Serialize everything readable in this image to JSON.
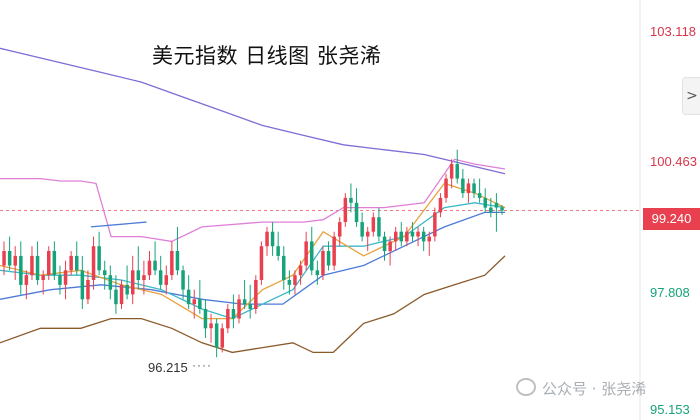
{
  "chart_data": {
    "type": "candlestick",
    "title": "美元指数 日线图 张尧浠",
    "y_axis": {
      "tick_labels": [
        "103.118",
        "100.463",
        "99.240",
        "97.808",
        "95.153"
      ],
      "ylim": [
        94.9,
        103.6
      ]
    },
    "last_price": "99.240",
    "low_annotation": "96.215",
    "candles": [
      [
        98.1,
        98.6,
        97.9,
        98.4
      ],
      [
        98.4,
        98.7,
        98.0,
        98.1
      ],
      [
        98.1,
        98.5,
        97.8,
        98.3
      ],
      [
        98.3,
        98.6,
        97.5,
        97.7
      ],
      [
        97.7,
        98.0,
        97.4,
        97.9
      ],
      [
        97.9,
        98.5,
        97.8,
        98.3
      ],
      [
        98.3,
        98.6,
        97.7,
        97.8
      ],
      [
        97.8,
        98.0,
        97.5,
        97.9
      ],
      [
        97.9,
        98.5,
        97.8,
        98.4
      ],
      [
        98.4,
        98.6,
        97.8,
        97.9
      ],
      [
        97.9,
        98.1,
        97.5,
        97.7
      ],
      [
        97.7,
        98.2,
        97.4,
        98.0
      ],
      [
        98.0,
        98.4,
        97.9,
        98.3
      ],
      [
        98.3,
        98.6,
        97.9,
        98.0
      ],
      [
        98.0,
        98.3,
        97.2,
        97.4
      ],
      [
        97.4,
        98.0,
        97.3,
        97.8
      ],
      [
        97.8,
        98.7,
        97.6,
        98.5
      ],
      [
        98.5,
        98.8,
        97.9,
        98.0
      ],
      [
        98.0,
        98.2,
        97.6,
        97.9
      ],
      [
        97.9,
        98.1,
        97.4,
        97.6
      ],
      [
        97.6,
        97.9,
        97.1,
        97.3
      ],
      [
        97.3,
        97.8,
        97.2,
        97.7
      ],
      [
        97.7,
        98.1,
        97.4,
        97.5
      ],
      [
        97.5,
        98.3,
        97.3,
        98.0
      ],
      [
        98.0,
        98.5,
        97.6,
        97.8
      ],
      [
        97.8,
        98.2,
        97.5,
        97.9
      ],
      [
        97.9,
        98.4,
        97.8,
        98.2
      ],
      [
        98.2,
        98.6,
        97.9,
        98.0
      ],
      [
        98.0,
        98.3,
        97.6,
        97.7
      ],
      [
        97.7,
        98.1,
        97.5,
        97.9
      ],
      [
        97.9,
        98.6,
        97.8,
        98.4
      ],
      [
        98.4,
        98.9,
        97.9,
        98.0
      ],
      [
        98.0,
        98.1,
        97.4,
        97.6
      ],
      [
        97.6,
        97.9,
        97.2,
        97.3
      ],
      [
        97.3,
        97.6,
        97.0,
        97.4
      ],
      [
        97.4,
        97.8,
        97.1,
        97.2
      ],
      [
        97.2,
        97.4,
        96.6,
        96.8
      ],
      [
        96.8,
        97.1,
        96.5,
        96.9
      ],
      [
        96.9,
        97.0,
        96.2,
        96.4
      ],
      [
        96.4,
        96.9,
        96.3,
        96.8
      ],
      [
        96.8,
        97.3,
        96.7,
        97.2
      ],
      [
        97.2,
        97.5,
        96.8,
        97.0
      ],
      [
        97.0,
        97.5,
        96.9,
        97.4
      ],
      [
        97.4,
        97.8,
        97.2,
        97.3
      ],
      [
        97.3,
        97.7,
        97.0,
        97.2
      ],
      [
        97.2,
        97.9,
        97.1,
        97.8
      ],
      [
        97.8,
        98.6,
        97.7,
        98.5
      ],
      [
        98.5,
        98.9,
        98.3,
        98.8
      ],
      [
        98.8,
        99.0,
        98.3,
        98.5
      ],
      [
        98.5,
        98.8,
        98.2,
        98.3
      ],
      [
        98.3,
        98.5,
        97.6,
        97.8
      ],
      [
        97.8,
        98.0,
        97.5,
        97.7
      ],
      [
        97.7,
        98.0,
        97.5,
        97.9
      ],
      [
        97.9,
        98.2,
        97.7,
        98.1
      ],
      [
        98.1,
        98.8,
        98.0,
        98.6
      ],
      [
        98.6,
        98.9,
        97.9,
        98.0
      ],
      [
        98.0,
        98.2,
        97.7,
        97.9
      ],
      [
        97.9,
        98.5,
        97.8,
        98.4
      ],
      [
        98.4,
        98.6,
        98.0,
        98.1
      ],
      [
        98.1,
        98.8,
        98.0,
        98.7
      ],
      [
        98.7,
        99.1,
        98.5,
        99.0
      ],
      [
        99.0,
        99.6,
        98.9,
        99.5
      ],
      [
        99.5,
        99.8,
        99.2,
        99.4
      ],
      [
        99.4,
        99.7,
        98.9,
        99.0
      ],
      [
        99.0,
        99.2,
        98.6,
        98.7
      ],
      [
        98.7,
        98.9,
        98.4,
        98.8
      ],
      [
        98.8,
        99.2,
        98.7,
        99.1
      ],
      [
        99.1,
        99.3,
        98.6,
        98.7
      ],
      [
        98.7,
        98.8,
        98.2,
        98.4
      ],
      [
        98.4,
        98.7,
        98.1,
        98.6
      ],
      [
        98.6,
        98.9,
        98.4,
        98.8
      ],
      [
        98.8,
        99.0,
        98.5,
        98.6
      ],
      [
        98.6,
        98.9,
        98.5,
        98.8
      ],
      [
        98.8,
        99.0,
        98.6,
        98.7
      ],
      [
        98.7,
        98.9,
        98.5,
        98.8
      ],
      [
        98.8,
        98.9,
        98.4,
        98.6
      ],
      [
        98.6,
        98.8,
        98.3,
        98.7
      ],
      [
        98.7,
        99.3,
        98.6,
        99.2
      ],
      [
        99.2,
        99.6,
        99.1,
        99.5
      ],
      [
        99.5,
        100.0,
        99.4,
        99.9
      ],
      [
        99.9,
        100.3,
        99.7,
        100.2
      ],
      [
        100.2,
        100.5,
        99.8,
        99.9
      ],
      [
        99.9,
        100.1,
        99.5,
        99.6
      ],
      [
        99.6,
        99.9,
        99.4,
        99.8
      ],
      [
        99.8,
        99.9,
        99.5,
        99.6
      ],
      [
        99.6,
        99.9,
        99.4,
        99.5
      ],
      [
        99.5,
        99.7,
        99.2,
        99.3
      ],
      [
        99.3,
        99.5,
        99.1,
        99.2
      ],
      [
        99.4,
        99.6,
        98.8,
        99.3
      ],
      [
        99.3,
        99.35,
        99.15,
        99.24
      ]
    ],
    "series": [
      {
        "type": "line",
        "color": "#7f6cd6",
        "values": [
          [
            0,
            102.6
          ],
          [
            20,
            102.5
          ],
          [
            60,
            102.3
          ],
          [
            100,
            102.1
          ],
          [
            140,
            101.9
          ],
          [
            180,
            101.6
          ],
          [
            220,
            101.3
          ],
          [
            260,
            101.0
          ],
          [
            300,
            100.8
          ],
          [
            340,
            100.6
          ],
          [
            380,
            100.5
          ],
          [
            420,
            100.4
          ],
          [
            460,
            100.2
          ],
          [
            500,
            100.0
          ]
        ]
      },
      {
        "type": "line",
        "color": "#e07fd8",
        "values": [
          [
            0,
            99.9
          ],
          [
            40,
            99.9
          ],
          [
            60,
            99.85
          ],
          [
            80,
            99.85
          ],
          [
            95,
            99.8
          ],
          [
            110,
            98.7
          ],
          [
            140,
            98.7
          ],
          [
            170,
            98.6
          ],
          [
            200,
            98.9
          ],
          [
            260,
            99.0
          ],
          [
            300,
            99.0
          ],
          [
            320,
            99.05
          ],
          [
            340,
            99.3
          ],
          [
            380,
            99.3
          ],
          [
            420,
            99.4
          ],
          [
            450,
            100.3
          ],
          [
            470,
            100.2
          ],
          [
            500,
            100.1
          ]
        ]
      },
      {
        "type": "line",
        "color": "#8a5a2b",
        "values": [
          [
            0,
            96.5
          ],
          [
            40,
            96.8
          ],
          [
            80,
            96.8
          ],
          [
            110,
            97.0
          ],
          [
            140,
            97.0
          ],
          [
            170,
            96.8
          ],
          [
            200,
            96.5
          ],
          [
            230,
            96.3
          ],
          [
            260,
            96.4
          ],
          [
            290,
            96.5
          ],
          [
            310,
            96.3
          ],
          [
            330,
            96.3
          ],
          [
            345,
            96.6
          ],
          [
            360,
            96.9
          ],
          [
            390,
            97.1
          ],
          [
            420,
            97.5
          ],
          [
            450,
            97.7
          ],
          [
            480,
            97.9
          ],
          [
            500,
            98.3
          ]
        ]
      },
      {
        "type": "line",
        "color": "#4c7bd9",
        "values": [
          [
            0,
            97.4
          ],
          [
            50,
            97.6
          ],
          [
            100,
            97.7
          ],
          [
            150,
            97.6
          ],
          [
            200,
            97.4
          ],
          [
            240,
            97.3
          ],
          [
            280,
            97.3
          ],
          [
            300,
            97.6
          ],
          [
            320,
            97.9
          ],
          [
            360,
            98.1
          ],
          [
            400,
            98.5
          ],
          [
            440,
            98.9
          ],
          [
            480,
            99.2
          ],
          [
            500,
            99.2
          ]
        ]
      },
      {
        "type": "line",
        "color": "#3cb8c8",
        "values": [
          [
            0,
            98.0
          ],
          [
            40,
            97.9
          ],
          [
            80,
            97.9
          ],
          [
            120,
            97.8
          ],
          [
            160,
            97.6
          ],
          [
            200,
            97.2
          ],
          [
            230,
            97.0
          ],
          [
            260,
            97.3
          ],
          [
            290,
            97.6
          ],
          [
            320,
            98.5
          ],
          [
            360,
            98.5
          ],
          [
            400,
            98.7
          ],
          [
            440,
            99.3
          ],
          [
            470,
            99.4
          ],
          [
            500,
            99.3
          ]
        ]
      },
      {
        "type": "line",
        "color": "#e8a23c",
        "values": [
          [
            0,
            98.1
          ],
          [
            40,
            97.9
          ],
          [
            80,
            98.0
          ],
          [
            120,
            97.7
          ],
          [
            160,
            97.5
          ],
          [
            200,
            97.0
          ],
          [
            230,
            97.0
          ],
          [
            260,
            97.6
          ],
          [
            290,
            97.9
          ],
          [
            320,
            98.8
          ],
          [
            360,
            98.3
          ],
          [
            400,
            98.7
          ],
          [
            440,
            99.8
          ],
          [
            470,
            99.6
          ],
          [
            500,
            99.3
          ]
        ]
      }
    ],
    "short_segment": {
      "color": "#4c7bd9",
      "x": [
        90,
        145
      ],
      "y": [
        98.9,
        99.0
      ]
    },
    "grid": false
  },
  "watermark": "公众号 · 张尧浠",
  "nav_arrow": ">",
  "colors": {
    "up": "#e8404f",
    "down": "#16a37a",
    "price_line": "#e8404f"
  }
}
